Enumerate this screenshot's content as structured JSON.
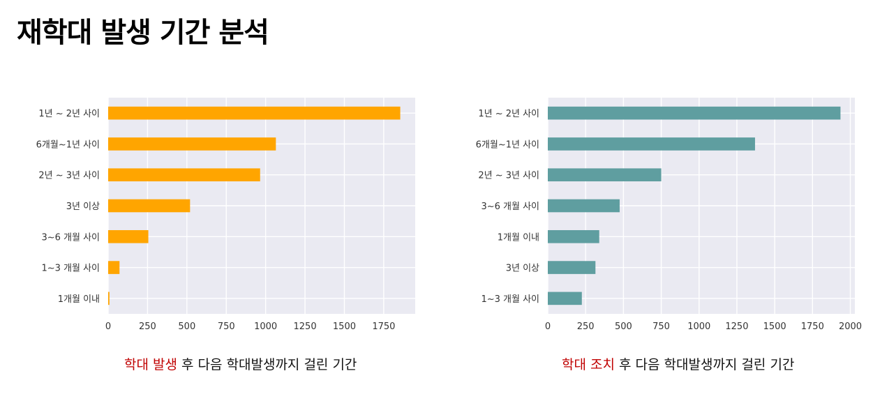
{
  "page": {
    "title": "재학대 발생 기간 분석"
  },
  "captions": {
    "left": {
      "highlight": "학대 발생",
      "rest": " 후 다음 학대발생까지 걸린 기간"
    },
    "right": {
      "highlight": "학대 조치",
      "rest": " 후 다음 학대발생까지 걸린 기간"
    }
  },
  "colors": {
    "left_bar": "#FFA500",
    "right_bar": "#5F9EA0",
    "highlight": "#C00000",
    "plot_bg": "#EAEAF2"
  },
  "chart_data": [
    {
      "type": "bar",
      "orientation": "horizontal",
      "categories": [
        "1년 ~ 2년 사이",
        "6개월~1년 사이",
        "2년 ~ 3년 사이",
        "3년 이상",
        "3~6 개월 사이",
        "1~3 개월 사이",
        "1개월 이내"
      ],
      "values": [
        1855,
        1065,
        965,
        520,
        255,
        72,
        8
      ],
      "xlim": [
        0,
        1950
      ],
      "xticks": [
        0,
        250,
        500,
        750,
        1000,
        1250,
        1500,
        1750
      ],
      "title": "",
      "xlabel": "",
      "ylabel": "",
      "grid": true
    },
    {
      "type": "bar",
      "orientation": "horizontal",
      "categories": [
        "1년 ~ 2년 사이",
        "6개월~1년 사이",
        "2년 ~ 3년 사이",
        "3~6 개월 사이",
        "1개월 이내",
        "3년 이상",
        "1~3 개월 사이"
      ],
      "values": [
        1935,
        1370,
        750,
        475,
        340,
        315,
        225
      ],
      "xlim": [
        0,
        2030
      ],
      "xticks": [
        0,
        250,
        500,
        750,
        1000,
        1250,
        1500,
        1750,
        2000
      ],
      "title": "",
      "xlabel": "",
      "ylabel": "",
      "grid": true
    }
  ]
}
